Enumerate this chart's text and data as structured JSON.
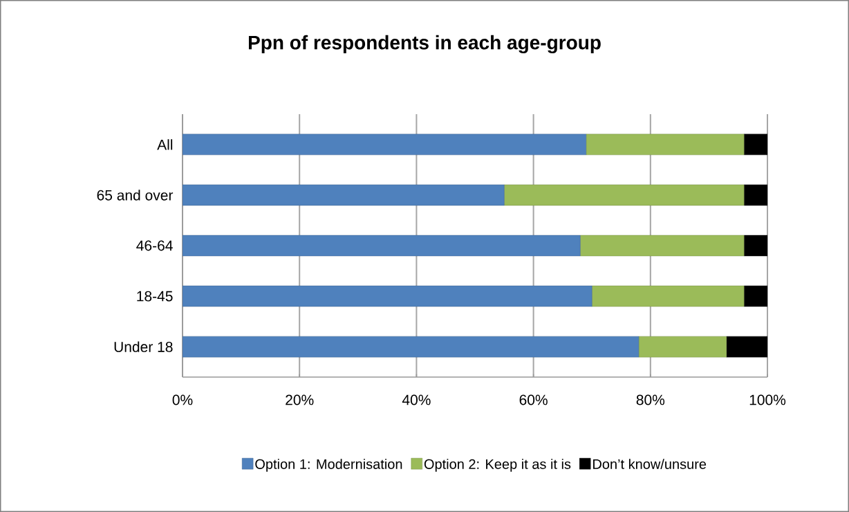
{
  "chart_data": {
    "type": "bar",
    "orientation": "horizontal",
    "stacked": true,
    "title": "Ppn of respondents in each age-group",
    "categories": [
      "All",
      "65 and over",
      "46-64",
      "18-45",
      "Under 18"
    ],
    "series": [
      {
        "name": "Option 1:  Modernisation",
        "color": "#4f81bd",
        "values": [
          69,
          55,
          68,
          70,
          78
        ]
      },
      {
        "name": "Option 2:  Keep it as it is",
        "color": "#9bbb59",
        "values": [
          27,
          41,
          28,
          26,
          15
        ]
      },
      {
        "name": "Don’t know/unsure",
        "color": "#000000",
        "values": [
          4,
          4,
          4,
          4,
          7
        ]
      }
    ],
    "xlim": [
      0,
      100
    ],
    "xticks": [
      {
        "value": 0,
        "label": "0%"
      },
      {
        "value": 20,
        "label": "20%"
      },
      {
        "value": 40,
        "label": "40%"
      },
      {
        "value": 60,
        "label": "60%"
      },
      {
        "value": 80,
        "label": "80%"
      },
      {
        "value": 100,
        "label": "100%"
      }
    ],
    "grid": "x",
    "legend": "bottom"
  }
}
